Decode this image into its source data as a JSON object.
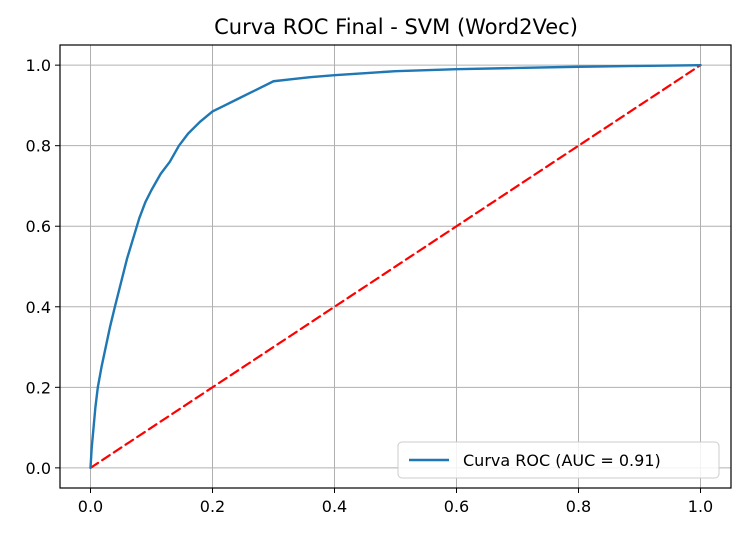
{
  "chart_data": {
    "type": "line",
    "title": "Curva ROC Final - SVM (Word2Vec)",
    "xlabel": "",
    "ylabel": "",
    "xlim": [
      -0.05,
      1.05
    ],
    "ylim": [
      -0.05,
      1.05
    ],
    "xticks": [
      0.0,
      0.2,
      0.4,
      0.6,
      0.8,
      1.0
    ],
    "yticks": [
      0.0,
      0.2,
      0.4,
      0.6,
      0.8,
      1.0
    ],
    "xtick_labels": [
      "0.0",
      "0.2",
      "0.4",
      "0.6",
      "0.8",
      "1.0"
    ],
    "ytick_labels": [
      "0.0",
      "0.2",
      "0.4",
      "0.6",
      "0.8",
      "1.0"
    ],
    "grid": true,
    "legend_position": "lower-right",
    "series": [
      {
        "name": "Curva ROC (AUC = 0.91)",
        "color": "#1f77b4",
        "style": "solid",
        "x": [
          0.0,
          0.002,
          0.005,
          0.008,
          0.012,
          0.018,
          0.025,
          0.032,
          0.04,
          0.05,
          0.06,
          0.07,
          0.08,
          0.09,
          0.1,
          0.115,
          0.13,
          0.145,
          0.16,
          0.18,
          0.2,
          0.22,
          0.24,
          0.26,
          0.28,
          0.3,
          0.33,
          0.36,
          0.4,
          0.45,
          0.5,
          0.6,
          0.7,
          0.8,
          0.9,
          1.0
        ],
        "y": [
          0.0,
          0.05,
          0.1,
          0.15,
          0.2,
          0.25,
          0.3,
          0.35,
          0.4,
          0.46,
          0.52,
          0.57,
          0.62,
          0.66,
          0.69,
          0.73,
          0.76,
          0.8,
          0.83,
          0.86,
          0.885,
          0.9,
          0.915,
          0.93,
          0.945,
          0.96,
          0.965,
          0.97,
          0.975,
          0.98,
          0.985,
          0.99,
          0.993,
          0.996,
          0.998,
          1.0
        ]
      },
      {
        "name": "",
        "color": "#ff0000",
        "style": "dashed",
        "x": [
          0.0,
          1.0
        ],
        "y": [
          0.0,
          1.0
        ]
      }
    ],
    "legend": {
      "entries": [
        "Curva ROC (AUC = 0.91)"
      ]
    }
  }
}
